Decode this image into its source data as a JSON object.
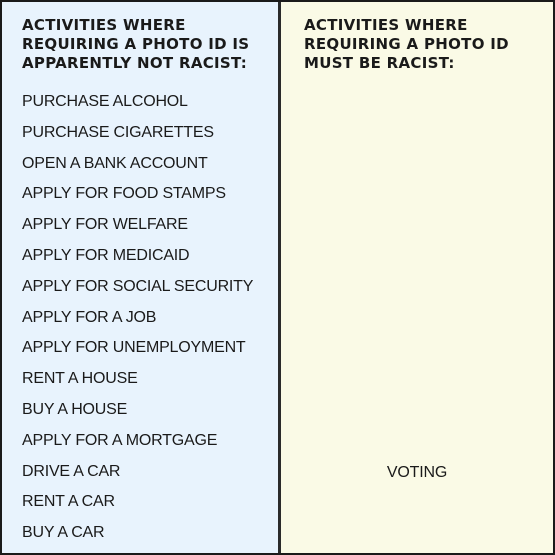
{
  "left_column": {
    "heading": "ACTIVITIES WHERE REQUIRING A PHOTO ID IS APPARENTLY NOT RACIST:",
    "items": [
      "PURCHASE ALCOHOL",
      "PURCHASE CIGARETTES",
      "OPEN A BANK ACCOUNT",
      "APPLY FOR FOOD STAMPS",
      "APPLY FOR WELFARE",
      "APPLY FOR MEDICAID",
      "APPLY FOR SOCIAL SECURITY",
      "APPLY FOR A JOB",
      "APPLY FOR UNEMPLOYMENT",
      "RENT A HOUSE",
      "BUY A HOUSE",
      "APPLY FOR A MORTGAGE",
      "DRIVE A CAR",
      "RENT A CAR",
      "BUY A CAR"
    ]
  },
  "right_column": {
    "heading": "ACTIVITIES WHERE REQUIRING A PHOTO ID MUST BE RACIST:",
    "items": [
      "VOTING"
    ]
  },
  "colors": {
    "left_background": "#e8f3fd",
    "right_background": "#fafae6",
    "divider": "#2a2a2a",
    "text": "#1a1a1a"
  }
}
